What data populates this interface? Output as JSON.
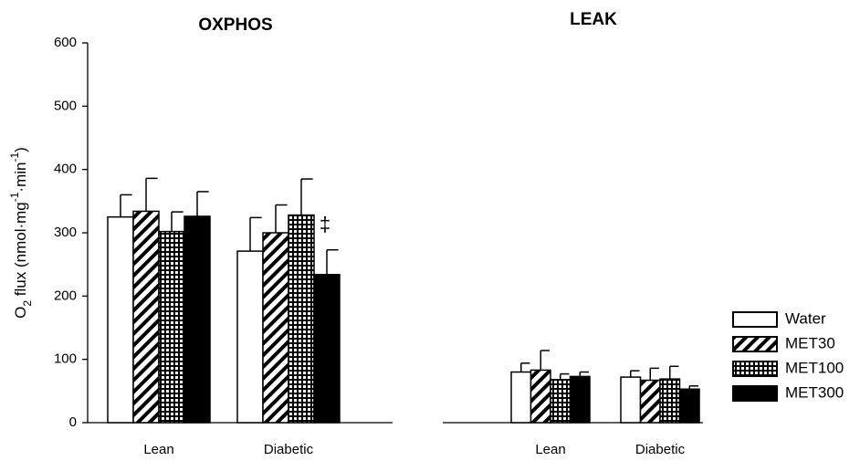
{
  "chart_data": [
    {
      "type": "bar",
      "title": "OXPHOS",
      "ylabel_parts": [
        "O",
        "2",
        " flux (nmol·mg",
        "-1",
        "·min",
        "-1",
        ")"
      ],
      "categories": [
        "Lean",
        "Diabetic"
      ],
      "series": [
        {
          "name": "Water",
          "fill": "white",
          "values": [
            325,
            271
          ],
          "errors": [
            35,
            53
          ]
        },
        {
          "name": "MET30",
          "fill": "diagonal",
          "values": [
            334,
            300
          ],
          "errors": [
            52,
            44
          ]
        },
        {
          "name": "MET100",
          "fill": "grid",
          "values": [
            302,
            328
          ],
          "errors": [
            31,
            57
          ]
        },
        {
          "name": "MET300",
          "fill": "black",
          "values": [
            326,
            234
          ],
          "errors": [
            39,
            39
          ]
        }
      ],
      "annotations": [
        {
          "text": "‡"
        }
      ],
      "ylim": [
        0,
        600
      ],
      "yticks": [
        0,
        100,
        200,
        300,
        400,
        500,
        600
      ]
    },
    {
      "type": "bar",
      "title": "LEAK",
      "categories": [
        "Lean",
        "Diabetic"
      ],
      "series": [
        {
          "name": "Water",
          "fill": "white",
          "values": [
            80,
            72
          ],
          "errors": [
            14,
            10
          ]
        },
        {
          "name": "MET30",
          "fill": "diagonal",
          "values": [
            83,
            67
          ],
          "errors": [
            31,
            19
          ]
        },
        {
          "name": "MET100",
          "fill": "grid",
          "values": [
            68,
            69
          ],
          "errors": [
            9,
            20
          ]
        },
        {
          "name": "MET300",
          "fill": "black",
          "values": [
            73,
            53
          ],
          "errors": [
            7,
            5
          ]
        }
      ],
      "legend": "right",
      "ylim": [
        0,
        600
      ]
    }
  ]
}
